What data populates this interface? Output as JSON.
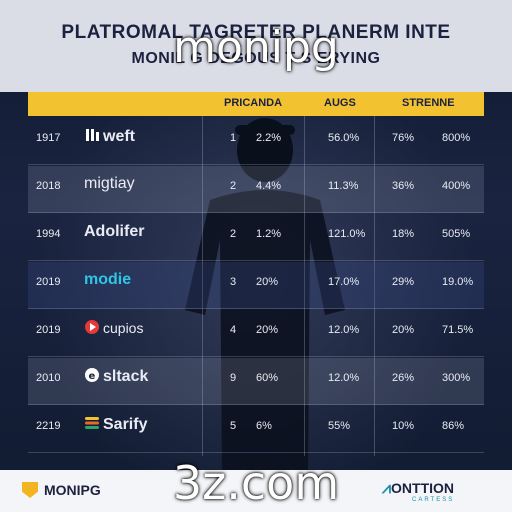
{
  "header": {
    "title_line1": "PLATROMAL TAGRETER PLANERM INTE",
    "title_line2": "MONIL G DEGOUS T S ERYING"
  },
  "watermarks": {
    "top": "monipg",
    "bottom": "3z.com"
  },
  "columns": {
    "c1": "PRICANDA",
    "c2": "AUGS",
    "c3": "STRENNE"
  },
  "rows": [
    {
      "year": "1917",
      "brand": "weft",
      "icon": "vertical-bars-logo-icon",
      "rank": "1",
      "p1": "2.2%",
      "p2": "56.0%",
      "p3": "76%",
      "p4": "800%"
    },
    {
      "year": "2018",
      "brand": "migtiay",
      "icon": "",
      "rank": "2",
      "p1": "4.4%",
      "p2": "11.3%",
      "p3": "36%",
      "p4": "400%"
    },
    {
      "year": "1994",
      "brand": "Adolifer",
      "icon": "",
      "rank": "2",
      "p1": "1.2%",
      "p2": "121.0%",
      "p3": "18%",
      "p4": "505%"
    },
    {
      "year": "2019",
      "brand": "modie",
      "icon": "",
      "rank": "3",
      "p1": "20%",
      "p2": "17.0%",
      "p3": "29%",
      "p4": "19.0%"
    },
    {
      "year": "2019",
      "brand": "cupios",
      "icon": "red-play-logo-icon",
      "rank": "4",
      "p1": "20%",
      "p2": "12.0%",
      "p3": "20%",
      "p4": "71.5%"
    },
    {
      "year": "2010",
      "brand": "sltack",
      "icon": "circle-e-logo-icon",
      "rank": "9",
      "p1": "60%",
      "p2": "12.0%",
      "p3": "26%",
      "p4": "300%"
    },
    {
      "year": "2219",
      "brand": "Sarify",
      "icon": "stripes-logo-icon",
      "rank": "5",
      "p1": "6%",
      "p2": "55%",
      "p3": "10%",
      "p4": "86%"
    }
  ],
  "footer": {
    "left_label": "MONIPG",
    "right_label": "ONTTION",
    "right_sub": "CARTESS"
  },
  "colors": {
    "accent": "#f2c230",
    "header_bg": "#ebeef5",
    "background": "#0d1526"
  }
}
